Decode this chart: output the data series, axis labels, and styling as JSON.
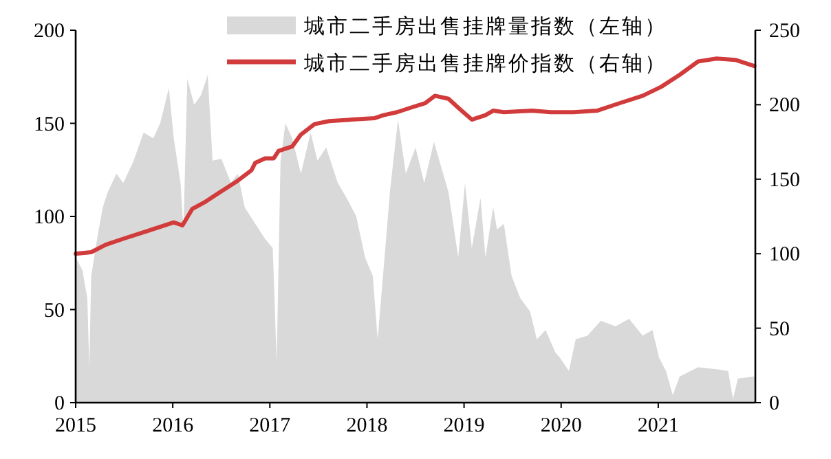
{
  "chart_data": {
    "type": "area",
    "xlim": [
      2015,
      2022
    ],
    "xticks": [
      2015,
      2016,
      2017,
      2018,
      2019,
      2020,
      2021
    ],
    "ylim": [
      0,
      200
    ],
    "yticks": [
      0,
      50,
      100,
      150,
      200
    ],
    "y2lim": [
      0,
      250
    ],
    "y2ticks": [
      0,
      50,
      100,
      150,
      200,
      250
    ],
    "grid": false,
    "legend": "top right",
    "series": [
      {
        "name": "城市二手房出售挂牌量指数（左轴）",
        "color": "#d9d9d9",
        "x": [
          2015.0,
          2015.07,
          2015.12,
          2015.14,
          2015.16,
          2015.23,
          2015.28,
          2015.33,
          2015.42,
          2015.49,
          2015.59,
          2015.7,
          2015.8,
          2015.87,
          2015.96,
          2016.01,
          2016.08,
          2016.11,
          2016.15,
          2016.22,
          2016.29,
          2016.36,
          2016.41,
          2016.5,
          2016.6,
          2016.67,
          2016.74,
          2016.85,
          2016.95,
          2017.03,
          2017.07,
          2017.11,
          2017.16,
          2017.23,
          2017.32,
          2017.42,
          2017.49,
          2017.58,
          2017.7,
          2017.79,
          2017.89,
          2017.98,
          2018.06,
          2018.11,
          2018.17,
          2018.24,
          2018.32,
          2018.4,
          2018.5,
          2018.59,
          2018.69,
          2018.84,
          2018.94,
          2019.01,
          2019.08,
          2019.17,
          2019.22,
          2019.3,
          2019.34,
          2019.41,
          2019.49,
          2019.58,
          2019.68,
          2019.75,
          2019.84,
          2019.94,
          2019.99,
          2020.08,
          2020.15,
          2020.27,
          2020.41,
          2020.56,
          2020.7,
          2020.84,
          2020.94,
          2021.01,
          2021.08,
          2021.15,
          2021.22,
          2021.41,
          2021.6,
          2021.72,
          2021.77,
          2021.82,
          2021.99
        ],
        "values": [
          78,
          71,
          56,
          19,
          68,
          91,
          105,
          113,
          123,
          118,
          129,
          145,
          142,
          150,
          169,
          142,
          118,
          93,
          174,
          160,
          165,
          176,
          130,
          131,
          118,
          123,
          105,
          96,
          88,
          83,
          22,
          130,
          150,
          142,
          123,
          145,
          130,
          137,
          118,
          110,
          100,
          78,
          68,
          34,
          71,
          115,
          152,
          123,
          137,
          118,
          140,
          113,
          78,
          118,
          83,
          110,
          78,
          105,
          93,
          96,
          68,
          56,
          49,
          34,
          39,
          27,
          24,
          17,
          34,
          36,
          44,
          41,
          45,
          36,
          39,
          24,
          17,
          4,
          14,
          19,
          18,
          17,
          2,
          13,
          14
        ]
      },
      {
        "name": "城市二手房出售挂牌价指数（右轴）",
        "type": "line",
        "axis": "y2",
        "color": "#d23b3b",
        "x": [
          2015.0,
          2015.16,
          2015.31,
          2015.49,
          2015.73,
          2015.87,
          2016.01,
          2016.1,
          2016.2,
          2016.34,
          2016.48,
          2016.67,
          2016.81,
          2016.85,
          2016.95,
          2017.04,
          2017.09,
          2017.23,
          2017.32,
          2017.46,
          2017.61,
          2017.84,
          2018.08,
          2018.17,
          2018.31,
          2018.45,
          2018.6,
          2018.7,
          2018.84,
          2018.94,
          2019.08,
          2019.22,
          2019.3,
          2019.41,
          2019.7,
          2019.89,
          2020.13,
          2020.37,
          2020.6,
          2020.84,
          2021.03,
          2021.22,
          2021.41,
          2021.6,
          2021.8,
          2021.99
        ],
        "values": [
          100,
          101,
          106,
          110,
          115,
          118,
          121,
          119,
          130,
          135,
          141,
          149,
          156,
          161,
          164,
          164,
          169,
          172,
          180,
          187,
          189,
          190,
          191,
          193,
          195,
          198,
          201,
          206,
          204,
          198,
          190,
          193,
          196,
          195,
          196,
          195,
          195,
          196,
          201,
          206,
          212,
          220,
          229,
          231,
          230,
          226
        ]
      }
    ]
  }
}
